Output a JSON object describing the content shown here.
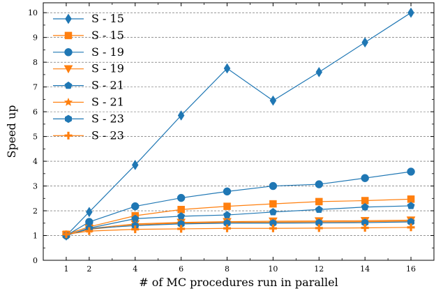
{
  "chart_data": {
    "type": "line",
    "title": "",
    "xlabel": "# of MC procedures run in parallel",
    "ylabel": "Speed up",
    "xlim": [
      0,
      17
    ],
    "ylim": [
      0,
      10.4
    ],
    "x_ticks": [
      1,
      2,
      4,
      6,
      8,
      10,
      12,
      14,
      16
    ],
    "y_ticks": [
      0,
      1,
      2,
      3,
      4,
      5,
      6,
      7,
      8,
      9,
      10
    ],
    "grid": "horizontal dashed",
    "legend_position": "top-left",
    "x": [
      1,
      2,
      4,
      6,
      8,
      10,
      12,
      14,
      16
    ],
    "series": [
      {
        "name": "S - 15",
        "color": "#1f77b4",
        "marker": "thin-diamond",
        "values": [
          1.0,
          1.95,
          3.85,
          5.85,
          7.75,
          6.45,
          7.6,
          8.8,
          10.0
        ]
      },
      {
        "name": "S - 15",
        "color": "#ff7f0e",
        "marker": "square",
        "values": [
          1.05,
          1.35,
          1.8,
          2.05,
          2.18,
          2.28,
          2.37,
          2.41,
          2.47
        ]
      },
      {
        "name": "S - 19",
        "color": "#1f77b4",
        "marker": "circle",
        "values": [
          1.0,
          1.55,
          2.18,
          2.52,
          2.78,
          3.0,
          3.07,
          3.32,
          3.58
        ]
      },
      {
        "name": "S - 19",
        "color": "#ff7f0e",
        "marker": "triangle-down",
        "values": [
          1.02,
          1.28,
          1.47,
          1.53,
          1.56,
          1.58,
          1.59,
          1.6,
          1.62
        ]
      },
      {
        "name": "S - 21",
        "color": "#1f77b4",
        "marker": "pentagon",
        "values": [
          1.0,
          1.3,
          1.68,
          1.78,
          1.83,
          1.95,
          2.05,
          2.15,
          2.2
        ]
      },
      {
        "name": "S - 21",
        "color": "#ff7f0e",
        "marker": "star",
        "values": [
          1.02,
          1.25,
          1.43,
          1.5,
          1.53,
          1.54,
          1.55,
          1.56,
          1.58
        ]
      },
      {
        "name": "S - 23",
        "color": "#1f77b4",
        "marker": "hexagon",
        "values": [
          1.0,
          1.28,
          1.4,
          1.47,
          1.5,
          1.5,
          1.51,
          1.52,
          1.55
        ]
      },
      {
        "name": "S - 23",
        "color": "#ff7f0e",
        "marker": "plus",
        "values": [
          1.05,
          1.18,
          1.25,
          1.27,
          1.29,
          1.29,
          1.3,
          1.31,
          1.33
        ]
      }
    ]
  }
}
